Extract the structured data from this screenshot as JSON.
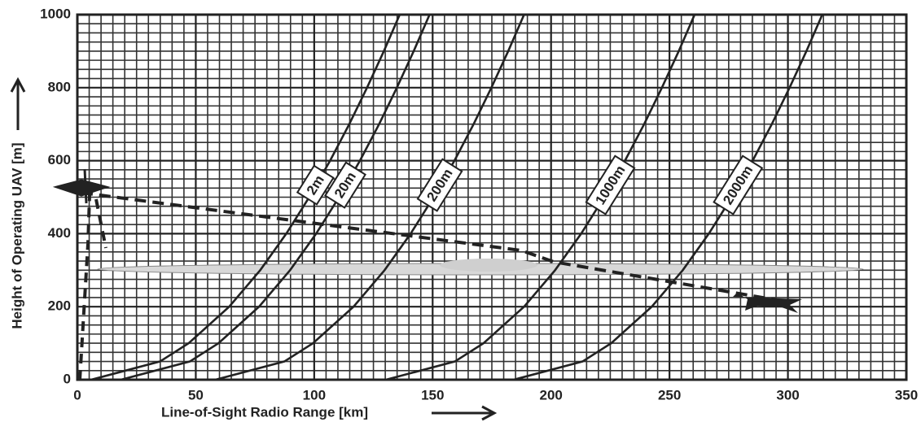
{
  "chart_data": {
    "type": "line",
    "xlabel": "Line-of-Sight Radio Range [km]",
    "ylabel": "Height of Operating UAV [m]",
    "xlim": [
      0,
      350
    ],
    "ylim": [
      0,
      1000
    ],
    "xticks": [
      0,
      50,
      100,
      150,
      200,
      250,
      300,
      350
    ],
    "yticks": [
      0,
      200,
      400,
      600,
      800,
      1000
    ],
    "grid": true,
    "color": "#222222",
    "series": [
      {
        "name": "2m",
        "x": [
          5.8,
          34.9,
          47.0,
          64.1,
          77.2,
          88.2,
          97.9,
          106.7,
          114.8,
          122.3,
          129.4,
          136.1
        ],
        "y": [
          0,
          50,
          100,
          200,
          300,
          400,
          500,
          600,
          700,
          800,
          900,
          1000
        ]
      },
      {
        "name": "20m",
        "x": [
          18.4,
          47.5,
          59.6,
          76.7,
          89.8,
          100.8,
          110.5,
          119.3,
          127.4,
          134.9,
          142.0,
          148.7
        ],
        "y": [
          0,
          50,
          100,
          200,
          300,
          400,
          500,
          600,
          700,
          800,
          900,
          1000
        ]
      },
      {
        "name": "200m",
        "x": [
          58.3,
          87.4,
          99.5,
          116.6,
          129.7,
          140.7,
          150.4,
          159.2,
          167.3,
          174.8,
          181.9,
          188.6
        ],
        "y": [
          0,
          50,
          100,
          200,
          300,
          400,
          500,
          600,
          700,
          800,
          900,
          1000
        ]
      },
      {
        "name": "1000m",
        "x": [
          130.3,
          159.4,
          171.5,
          188.6,
          201.7,
          212.7,
          222.4,
          231.2,
          239.3,
          246.8,
          253.9,
          260.6
        ],
        "y": [
          0,
          50,
          100,
          200,
          300,
          400,
          500,
          600,
          700,
          800,
          900,
          1000
        ]
      },
      {
        "name": "2000m",
        "x": [
          184.2,
          213.3,
          225.4,
          242.5,
          255.6,
          266.6,
          276.3,
          285.1,
          293.2,
          300.7,
          307.8,
          314.5
        ],
        "y": [
          0,
          50,
          100,
          200,
          300,
          400,
          500,
          600,
          700,
          800,
          900,
          1000
        ]
      }
    ]
  }
}
